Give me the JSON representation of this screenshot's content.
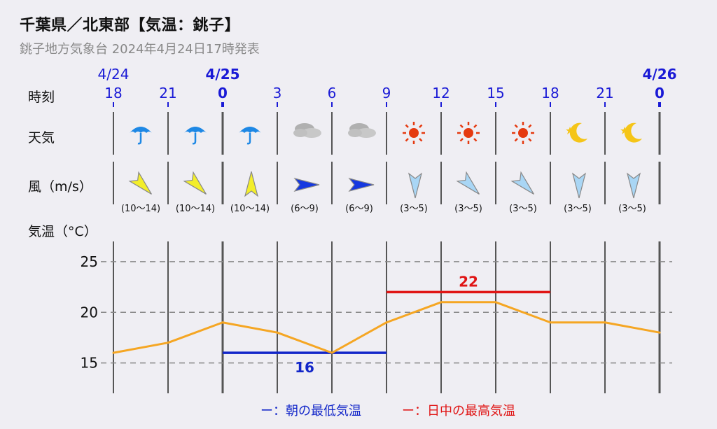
{
  "header": {
    "title": "千葉県／北東部【気温：銚子】",
    "subtitle": "銚子地方気象台 2024年4月24日17時発表"
  },
  "row_labels": {
    "time": "時刻",
    "weather": "天気",
    "wind": "風（m/s）",
    "temperature": "気温（°C）"
  },
  "dates": [
    "4/24",
    "4/25",
    "4/26"
  ],
  "hours": [
    "18",
    "21",
    "0",
    "3",
    "6",
    "9",
    "12",
    "15",
    "18",
    "21",
    "0"
  ],
  "weather": [
    "umbrella-icon",
    "umbrella-icon",
    "umbrella-icon",
    "cloud-icon",
    "cloud-icon",
    "sun-icon",
    "sun-icon",
    "sun-icon",
    "moon-icon",
    "moon-icon"
  ],
  "wind": [
    {
      "speed": "(10〜14)",
      "color": "#f3ee2a",
      "dir": "from-northwest"
    },
    {
      "speed": "(10〜14)",
      "color": "#f3ee2a",
      "dir": "from-northwest"
    },
    {
      "speed": "(10〜14)",
      "color": "#f3ee2a",
      "dir": "from-south"
    },
    {
      "speed": "(6〜9)",
      "color": "#1538e0",
      "dir": "from-west"
    },
    {
      "speed": "(6〜9)",
      "color": "#1538e0",
      "dir": "from-west"
    },
    {
      "speed": "(3〜5)",
      "color": "#a9d6f5",
      "dir": "from-north"
    },
    {
      "speed": "(3〜5)",
      "color": "#a9d6f5",
      "dir": "from-northwest"
    },
    {
      "speed": "(3〜5)",
      "color": "#a9d6f5",
      "dir": "from-northwest"
    },
    {
      "speed": "(3〜5)",
      "color": "#a9d6f5",
      "dir": "from-north"
    },
    {
      "speed": "(3〜5)",
      "color": "#a9d6f5",
      "dir": "from-north"
    }
  ],
  "chart_data": {
    "type": "line",
    "x": [
      "18",
      "21",
      "0",
      "3",
      "6",
      "9",
      "12",
      "15",
      "18",
      "21",
      "0"
    ],
    "series": [
      {
        "values": [
          16,
          17,
          19,
          18,
          16,
          19,
          21,
          21,
          19,
          19,
          18
        ],
        "color": "#f5a623"
      }
    ],
    "y_ticks": [
      15,
      20,
      25
    ],
    "ylim": [
      12,
      27
    ],
    "grid": true,
    "min_temp": {
      "value": 16,
      "label": "16",
      "from_index": 2,
      "to_index": 5,
      "color": "#1226c9"
    },
    "max_temp": {
      "value": 22,
      "label": "22",
      "from_index": 5,
      "to_index": 8,
      "color": "#e01515"
    }
  },
  "legend": {
    "min": "ー：朝の最低気温",
    "max": "ー：日中の最高気温"
  }
}
